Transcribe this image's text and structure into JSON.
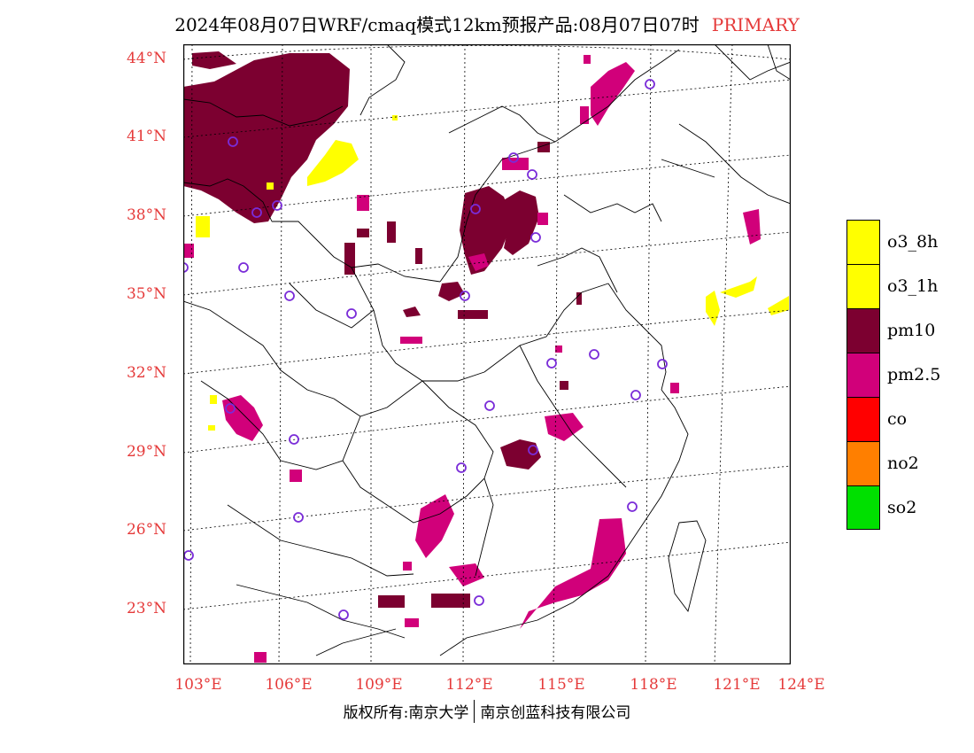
{
  "title": {
    "main": "2024年08月07日WRF/cmaq模式12km预报产品:08月07日07时",
    "tag": "PRIMARY"
  },
  "axes": {
    "lat_labels": [
      "44°N",
      "41°N",
      "38°N",
      "35°N",
      "32°N",
      "29°N",
      "26°N",
      "23°N"
    ],
    "lon_labels": [
      "103°E",
      "106°E",
      "109°E",
      "112°E",
      "115°E",
      "118°E",
      "121°E",
      "124°E"
    ]
  },
  "legend": [
    {
      "label": "o3_8h",
      "color": "#ffff00"
    },
    {
      "label": "o3_1h",
      "color": "#ffff00"
    },
    {
      "label": "pm10",
      "color": "#7c0030"
    },
    {
      "label": "pm2.5",
      "color": "#d1007a"
    },
    {
      "label": "co",
      "color": "#ff0000"
    },
    {
      "label": "no2",
      "color": "#ff7f00"
    },
    {
      "label": "so2",
      "color": "#00e000"
    }
  ],
  "colors": {
    "pm10": "#7c0030",
    "pm25": "#d1007a",
    "o3": "#ffff00",
    "label": "#e53a3a",
    "station": "#7a2cd8",
    "grid": "#000000"
  },
  "copyright": {
    "left": "版权所有:南京大学",
    "right": "南京创蓝科技有限公司"
  }
}
